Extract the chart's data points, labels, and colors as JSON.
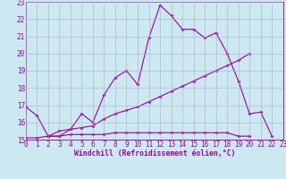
{
  "line1_x": [
    0,
    1,
    2,
    3,
    4,
    5,
    6,
    7,
    8,
    9,
    10,
    11,
    12,
    13,
    14,
    15,
    16,
    17,
    18,
    19,
    20,
    21,
    22
  ],
  "line1_y": [
    16.9,
    16.4,
    15.2,
    15.2,
    15.6,
    16.5,
    16.0,
    17.6,
    18.6,
    19.0,
    18.2,
    20.9,
    22.8,
    22.2,
    21.4,
    21.4,
    20.9,
    21.2,
    20.0,
    18.4,
    16.5,
    16.6,
    15.2
  ],
  "line2_x": [
    0,
    1,
    2,
    3,
    4,
    5,
    6,
    7,
    8,
    9,
    10,
    11,
    12,
    13,
    14,
    15,
    16,
    17,
    18,
    19,
    20
  ],
  "line2_y": [
    15.1,
    15.1,
    15.2,
    15.5,
    15.6,
    15.7,
    15.8,
    16.2,
    16.5,
    16.7,
    16.9,
    17.2,
    17.5,
    17.8,
    18.1,
    18.4,
    18.7,
    19.0,
    19.3,
    19.6,
    20.0
  ],
  "line3_x": [
    2,
    3,
    4,
    5,
    6,
    7,
    8,
    9,
    10,
    11,
    12,
    13,
    14,
    15,
    16,
    17,
    18,
    19,
    20
  ],
  "line3_y": [
    15.2,
    15.2,
    15.3,
    15.3,
    15.3,
    15.3,
    15.4,
    15.4,
    15.4,
    15.4,
    15.4,
    15.4,
    15.4,
    15.4,
    15.4,
    15.4,
    15.4,
    15.2,
    15.2
  ],
  "line_color": "#990099",
  "bg_color": "#cce8f0",
  "grid_color": "#b0b0cc",
  "xlabel": "Windchill (Refroidissement éolien,°C)",
  "ylim": [
    15,
    23
  ],
  "xlim": [
    0,
    23
  ],
  "yticks": [
    15,
    16,
    17,
    18,
    19,
    20,
    21,
    22,
    23
  ],
  "xticks": [
    0,
    1,
    2,
    3,
    4,
    5,
    6,
    7,
    8,
    9,
    10,
    11,
    12,
    13,
    14,
    15,
    16,
    17,
    18,
    19,
    20,
    21,
    22,
    23
  ],
  "marker": "D",
  "markersize": 2.0,
  "linewidth": 0.8,
  "xlabel_fontsize": 5.8,
  "tick_fontsize": 5.5
}
